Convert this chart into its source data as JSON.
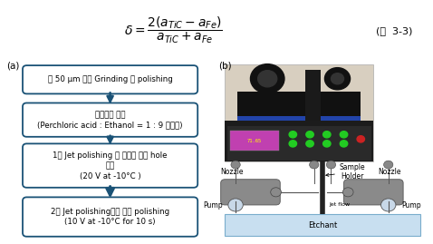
{
  "formula_text": "$\\delta = \\dfrac{2(a_{TiC} - a_{Fe})}{a_{TiC} + a_{Fe}}$",
  "formula_label": "(식  3-3)",
  "label_a": "(a)",
  "label_b": "(b)",
  "box_texts": [
    "약 50 μm 까지 Grinding 및 polishing",
    "에청용액 혼합\n(Perchloric acid : Ethanol = 1 : 9 부피비)",
    "1차 Jet polishing 을 이용한 시편 hole\n형성\n(20 V at -10°C )",
    "2차 Jet polishing으로 추가 polishing\n(10 V at -10°C for 10 s)"
  ],
  "box_color": "#FFFFFF",
  "box_edge_color": "#1a5276",
  "arrow_color": "#1a5276",
  "text_color": "#000000",
  "bg_color": "#FFFFFF",
  "diagram_nozzle_color": "#8a8a8a",
  "diagram_pump_color": "#b0c4de",
  "diagram_holder_color": "#222222",
  "diagram_etchant_color": "#c8dff0",
  "diagram_etchant_edge": "#7aadcc",
  "diagram_wire_color": "#555555",
  "diagram_small_circle_color": "#888888"
}
